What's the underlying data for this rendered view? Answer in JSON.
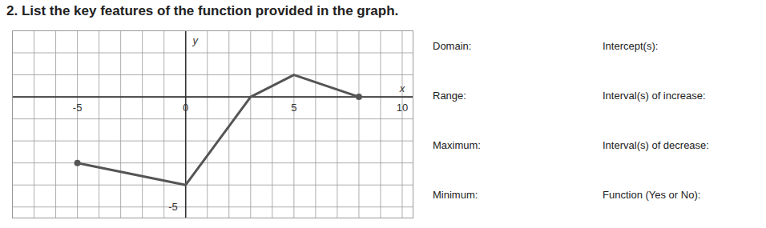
{
  "chart_data": {
    "type": "line",
    "title": "2. List the key features of the function provided in the graph.",
    "x_label": "x",
    "y_label": "y",
    "x": [
      -5,
      0,
      3,
      5,
      8
    ],
    "values": [
      -3,
      -4,
      0,
      1,
      0
    ],
    "color": "#555555",
    "marker": "circle",
    "xlim": [
      -8,
      10.5
    ],
    "xticks": [
      -5,
      0,
      5,
      10
    ],
    "ylim": [
      -5.5,
      3
    ],
    "yticks": [
      -5
    ],
    "grid": true,
    "annotations": [
      "Domain:",
      "Intercept(s):",
      "Range:",
      "Interval(s) of increase:",
      "Maximum:",
      "Interval(s) of decrease:",
      "Minimum:",
      "Function (Yes or No):"
    ]
  }
}
